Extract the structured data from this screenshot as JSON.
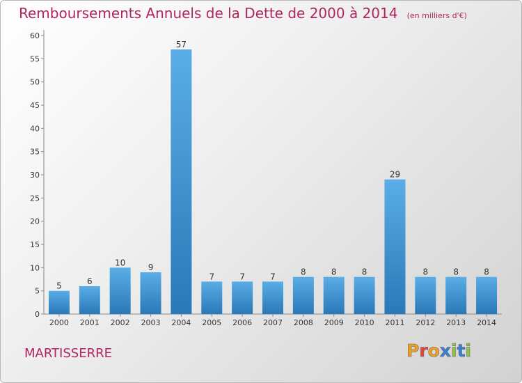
{
  "header": {
    "title": "Remboursements Annuels de la Dette de 2000 à 2014",
    "unit": "(en milliers d'€)"
  },
  "footer": {
    "commune": "MARTISSERRE",
    "brand": "Proxiti"
  },
  "colors": {
    "title": "#b0245f",
    "bar_top": "#5aade6",
    "bar_bottom": "#2a78b8",
    "brand_letters": [
      "#f0a020",
      "#e8443a",
      "#f0a020",
      "#3a7fd0",
      "#8cc63f",
      "#3a7fd0",
      "#8cc63f"
    ]
  },
  "chart_data": {
    "type": "bar",
    "title": "Remboursements Annuels de la Dette de 2000 à 2014",
    "xlabel": "",
    "ylabel": "",
    "ylim": [
      0,
      60
    ],
    "yticks": [
      0,
      5,
      10,
      15,
      20,
      25,
      30,
      35,
      40,
      45,
      50,
      55,
      60
    ],
    "grid": false,
    "categories": [
      "2000",
      "2001",
      "2002",
      "2003",
      "2004",
      "2005",
      "2006",
      "2007",
      "2008",
      "2009",
      "2010",
      "2011",
      "2012",
      "2013",
      "2014"
    ],
    "values": [
      5,
      6,
      10,
      9,
      57,
      7,
      7,
      7,
      8,
      8,
      8,
      29,
      8,
      8,
      8
    ]
  }
}
